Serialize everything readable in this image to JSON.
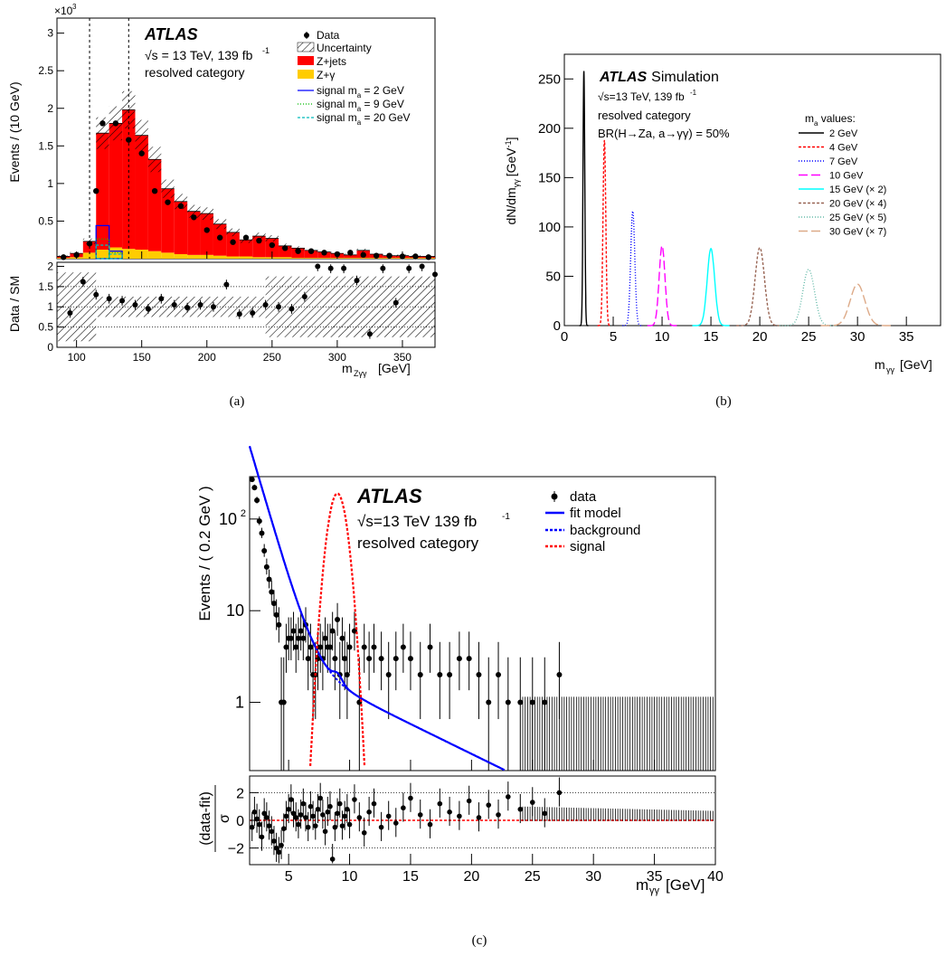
{
  "panel_labels": [
    "(a)",
    "(b)",
    "(c)"
  ],
  "colors": {
    "zjets": "#ff0000",
    "zgamma": "#ffcc00",
    "sig2": "#0000ff",
    "sig9": "#00bb00",
    "sig20": "#00bbbb",
    "fit": "#0000ff",
    "bkg": "#0000ff",
    "signal": "#ff0000"
  },
  "chart_data": [
    {
      "type": "bar",
      "panel": "a",
      "atlas": "ATLAS",
      "energy_text": "√s = 13 TeV, 139 fb",
      "lumi_exp": "-1",
      "category": "resolved category",
      "exponent_label": "×10",
      "exponent_power": "3",
      "ylabel": "Events / (10 GeV)",
      "ratio_ylabel": "Data / SM",
      "xlabel": "m",
      "xlabel_sub": "Zγγ",
      "xlabel_unit": "[GeV]",
      "xlim": [
        85,
        375
      ],
      "ylim": [
        0,
        3.2
      ],
      "ratio_ylim": [
        0,
        2.1
      ],
      "yticks": [
        "0.5",
        "1",
        "1.5",
        "2",
        "2.5",
        "3"
      ],
      "ratio_yticks": [
        "0",
        "0.5",
        "1",
        "1.5",
        "2"
      ],
      "xticks": [
        "100",
        "150",
        "200",
        "250",
        "300",
        "350"
      ],
      "dashed_lines_x": [
        110,
        140
      ],
      "legend": {
        "data": "Data",
        "uncertainty": "Uncertainty",
        "zjets": "Z+jets",
        "zgamma": "Z+γ",
        "sig2": "signal m",
        "sig2_rest": " = 2 GeV",
        "sig9": "signal m",
        "sig9_rest": " = 9 GeV",
        "sig20": "signal m",
        "sig20_rest": " = 20 GeV",
        "sub_a": "a"
      },
      "bin_edges": [
        85,
        95,
        105,
        115,
        125,
        135,
        145,
        155,
        165,
        175,
        185,
        195,
        205,
        215,
        225,
        235,
        245,
        255,
        265,
        275,
        285,
        295,
        305,
        315,
        325,
        335,
        345,
        355,
        365,
        375
      ],
      "zjets": [
        0.02,
        0.05,
        0.15,
        1.55,
        1.65,
        1.85,
        1.52,
        1.22,
        0.85,
        0.7,
        0.58,
        0.55,
        0.42,
        0.32,
        0.22,
        0.28,
        0.25,
        0.15,
        0.13,
        0.1,
        0.08,
        0.06,
        0.04,
        0.1,
        0.05,
        0.03,
        0.03,
        0.02,
        0.02
      ],
      "zgamma": [
        0.01,
        0.02,
        0.08,
        0.12,
        0.15,
        0.13,
        0.12,
        0.1,
        0.08,
        0.06,
        0.05,
        0.05,
        0.04,
        0.03,
        0.03,
        0.02,
        0.02,
        0.02,
        0.01,
        0.01,
        0.01,
        0.01,
        0.01,
        0.01,
        0.01,
        0.01,
        0.01,
        0.01,
        0.01
      ],
      "signal_2": [
        0,
        0,
        0,
        0.44,
        0.1,
        0,
        0,
        0,
        0,
        0,
        0,
        0,
        0,
        0,
        0,
        0,
        0,
        0,
        0,
        0,
        0,
        0,
        0,
        0,
        0,
        0,
        0,
        0,
        0
      ],
      "signal_9": [
        0,
        0,
        0,
        0.26,
        0.08,
        0,
        0,
        0,
        0,
        0,
        0,
        0,
        0,
        0,
        0,
        0,
        0,
        0,
        0,
        0,
        0,
        0,
        0,
        0,
        0,
        0,
        0,
        0,
        0
      ],
      "signal_20": [
        0,
        0,
        0,
        0.18,
        0.06,
        0,
        0,
        0,
        0,
        0,
        0,
        0,
        0,
        0,
        0,
        0,
        0,
        0,
        0,
        0,
        0,
        0,
        0,
        0,
        0,
        0,
        0,
        0,
        0
      ],
      "data_x": [
        90,
        100,
        110,
        115,
        120,
        130,
        140,
        150,
        160,
        170,
        180,
        190,
        200,
        210,
        220,
        230,
        240,
        250,
        260,
        270,
        280,
        290,
        300,
        310,
        320,
        330,
        340,
        350,
        360,
        370
      ],
      "data_y": [
        0.02,
        0.05,
        0.2,
        0.9,
        1.8,
        1.8,
        1.58,
        1.4,
        0.9,
        0.75,
        0.7,
        0.55,
        0.38,
        0.28,
        0.22,
        0.28,
        0.24,
        0.18,
        0.14,
        0.1,
        0.1,
        0.08,
        0.06,
        0.08,
        0.05,
        0.04,
        0.04,
        0.03,
        0.03,
        0.02
      ],
      "ratio_x": [
        95,
        105,
        115,
        125,
        135,
        145,
        155,
        165,
        175,
        185,
        195,
        205,
        215,
        225,
        235,
        245,
        255,
        265,
        275,
        285,
        295,
        305,
        315,
        325,
        335,
        345,
        355,
        365,
        375
      ],
      "ratio_y": [
        0.85,
        1.62,
        1.3,
        1.2,
        1.15,
        1.05,
        0.95,
        1.2,
        1.05,
        0.98,
        1.05,
        1.0,
        1.55,
        0.82,
        0.85,
        1.05,
        1.0,
        0.95,
        1.25,
        2.0,
        1.95,
        1.95,
        1.65,
        0.33,
        1.95,
        1.1,
        1.95,
        2.0,
        1.8
      ]
    },
    {
      "type": "line",
      "panel": "b",
      "atlas": "ATLAS",
      "atlas_suffix": "Simulation",
      "energy_text": "√s=13 TeV, 139 fb",
      "lumi_exp": "-1",
      "category": "resolved category",
      "br_text": "BR(H→Za, a→γγ) = 50%",
      "ylabel": "dN/dm",
      "ylabel_sub": "γγ",
      "ylabel_unit": "[GeV",
      "ylabel_unit_exp": "-1",
      "ylabel_unit_close": "]",
      "xlabel": "m",
      "xlabel_sub": "γγ",
      "xlabel_unit": "[GeV]",
      "xlim": [
        0,
        38.5
      ],
      "ylim": [
        0,
        275
      ],
      "xticks": [
        "0",
        "5",
        "10",
        "15",
        "20",
        "25",
        "30",
        "35"
      ],
      "yticks": [
        "0",
        "50",
        "100",
        "150",
        "200",
        "250"
      ],
      "legend_title": "m",
      "legend_title_sub": "a",
      "legend_title_rest": " values:",
      "series": [
        {
          "name": "2 GeV",
          "mean": 2,
          "sigma": 0.09,
          "peak": 258,
          "color": "#000000",
          "dash": ""
        },
        {
          "name": "4 GeV",
          "mean": 4.1,
          "sigma": 0.14,
          "peak": 188,
          "color": "#ff0000",
          "dash": "3,2"
        },
        {
          "name": "7 GeV",
          "mean": 7.0,
          "sigma": 0.21,
          "peak": 116,
          "color": "#0000ff",
          "dash": "1,2"
        },
        {
          "name": "10 GeV",
          "mean": 10.0,
          "sigma": 0.3,
          "peak": 81,
          "color": "#ff00ff",
          "dash": "10,4"
        },
        {
          "name": "15 GeV (× 2)",
          "mean": 15.0,
          "sigma": 0.38,
          "peak": 78,
          "color": "#00ffff",
          "dash": ""
        },
        {
          "name": "20 GeV (× 4)",
          "mean": 20.0,
          "sigma": 0.48,
          "peak": 79,
          "color": "#996655",
          "dash": "3,2"
        },
        {
          "name": "25 GeV (× 5)",
          "mean": 25.0,
          "sigma": 0.6,
          "peak": 57,
          "color": "#66bbaa",
          "dash": "1,2"
        },
        {
          "name": "30 GeV (× 7)",
          "mean": 30.0,
          "sigma": 0.75,
          "peak": 42,
          "color": "#ddaa88",
          "dash": "10,4"
        }
      ]
    },
    {
      "type": "scatter",
      "panel": "c",
      "atlas": "ATLAS",
      "energy_text": "√s=13 TeV 139 fb",
      "lumi_exp": "-1",
      "category": "resolved category",
      "ylabel": "Events / ( 0.2 GeV )",
      "ratio_ylabel_num": "(data-fit)",
      "ratio_ylabel_den": "σ",
      "xlabel": "m",
      "xlabel_sub": "γγ",
      "xlabel_unit": "[GeV]",
      "xlim": [
        1.8,
        40
      ],
      "ylim_log": [
        0.18,
        290
      ],
      "ratio_ylim": [
        -3.2,
        3.2
      ],
      "xticks": [
        "5",
        "10",
        "15",
        "20",
        "25",
        "30",
        "35",
        "40"
      ],
      "yticks": [
        "1",
        "10",
        "10"
      ],
      "yticks_exp": [
        "",
        "",
        "2"
      ],
      "ratio_yticks": [
        "−2",
        "0",
        "2"
      ],
      "legend": {
        "data": "data",
        "fit": "fit model",
        "bkg": "background",
        "signal": "signal"
      },
      "data_x": [
        2.0,
        2.2,
        2.4,
        2.6,
        2.8,
        3.0,
        3.2,
        3.4,
        3.6,
        3.8,
        4.0,
        4.2,
        4.4,
        4.6,
        4.8,
        5.0,
        5.2,
        5.4,
        5.6,
        5.8,
        6.0,
        6.2,
        6.4,
        6.6,
        6.8,
        7.0,
        7.2,
        7.4,
        7.6,
        7.8,
        8.0,
        8.2,
        8.4,
        8.6,
        8.8,
        9.0,
        9.2,
        9.4,
        9.6,
        9.8,
        10.0,
        10.4,
        10.8,
        11.2,
        11.6,
        12.0,
        12.6,
        13.2,
        13.8,
        14.4,
        15.0,
        15.8,
        16.6,
        17.4,
        18.2,
        19.0,
        19.8,
        20.6,
        21.4,
        22.2,
        23.0,
        24.0,
        25.0,
        26.0,
        27.2
      ],
      "data_y": [
        270,
        220,
        160,
        95,
        70,
        45,
        30,
        22,
        16,
        12,
        9,
        7,
        1,
        1,
        4,
        5,
        5,
        6,
        4,
        5,
        6,
        5,
        7,
        3,
        4,
        2,
        2,
        3,
        4,
        3,
        5,
        4,
        4,
        6,
        3,
        8,
        2,
        5,
        3,
        2,
        4,
        6,
        1,
        4,
        3,
        4,
        3,
        2,
        3,
        4,
        3,
        2,
        4,
        2,
        2,
        3,
        3,
        2,
        1,
        2,
        1,
        1,
        1,
        1,
        2
      ],
      "ratio_vals": [
        -0.5,
        0.6,
        0.1,
        -0.3,
        -1.2,
        0.5,
        0.2,
        -0.4,
        -0.8,
        -1.5,
        -2.0,
        -2.3,
        -1.8,
        -0.6,
        0.3,
        0.8,
        1.5,
        0.5,
        0.2,
        -0.3,
        0.4,
        1.2,
        0.2,
        -0.5,
        1.0,
        0.3,
        -0.4,
        0.8,
        1.6,
        0.4,
        -0.8,
        0.6,
        1.0,
        -2.8,
        -0.5,
        0.5,
        1.2,
        -0.4,
        0.3,
        0.8,
        -0.3,
        1.5,
        0.2,
        -0.9,
        0.6,
        1.2,
        -0.5,
        0.3,
        -0.2,
        0.9,
        1.6,
        0.4,
        -0.3,
        1.2,
        0.6,
        0.3,
        1.4,
        0.2,
        1.1,
        0.4,
        1.7,
        0.8,
        1.3,
        0.5,
        2.0
      ],
      "signal_peak": 190,
      "signal_mean": 9.0,
      "signal_sigma": 0.6
    }
  ]
}
